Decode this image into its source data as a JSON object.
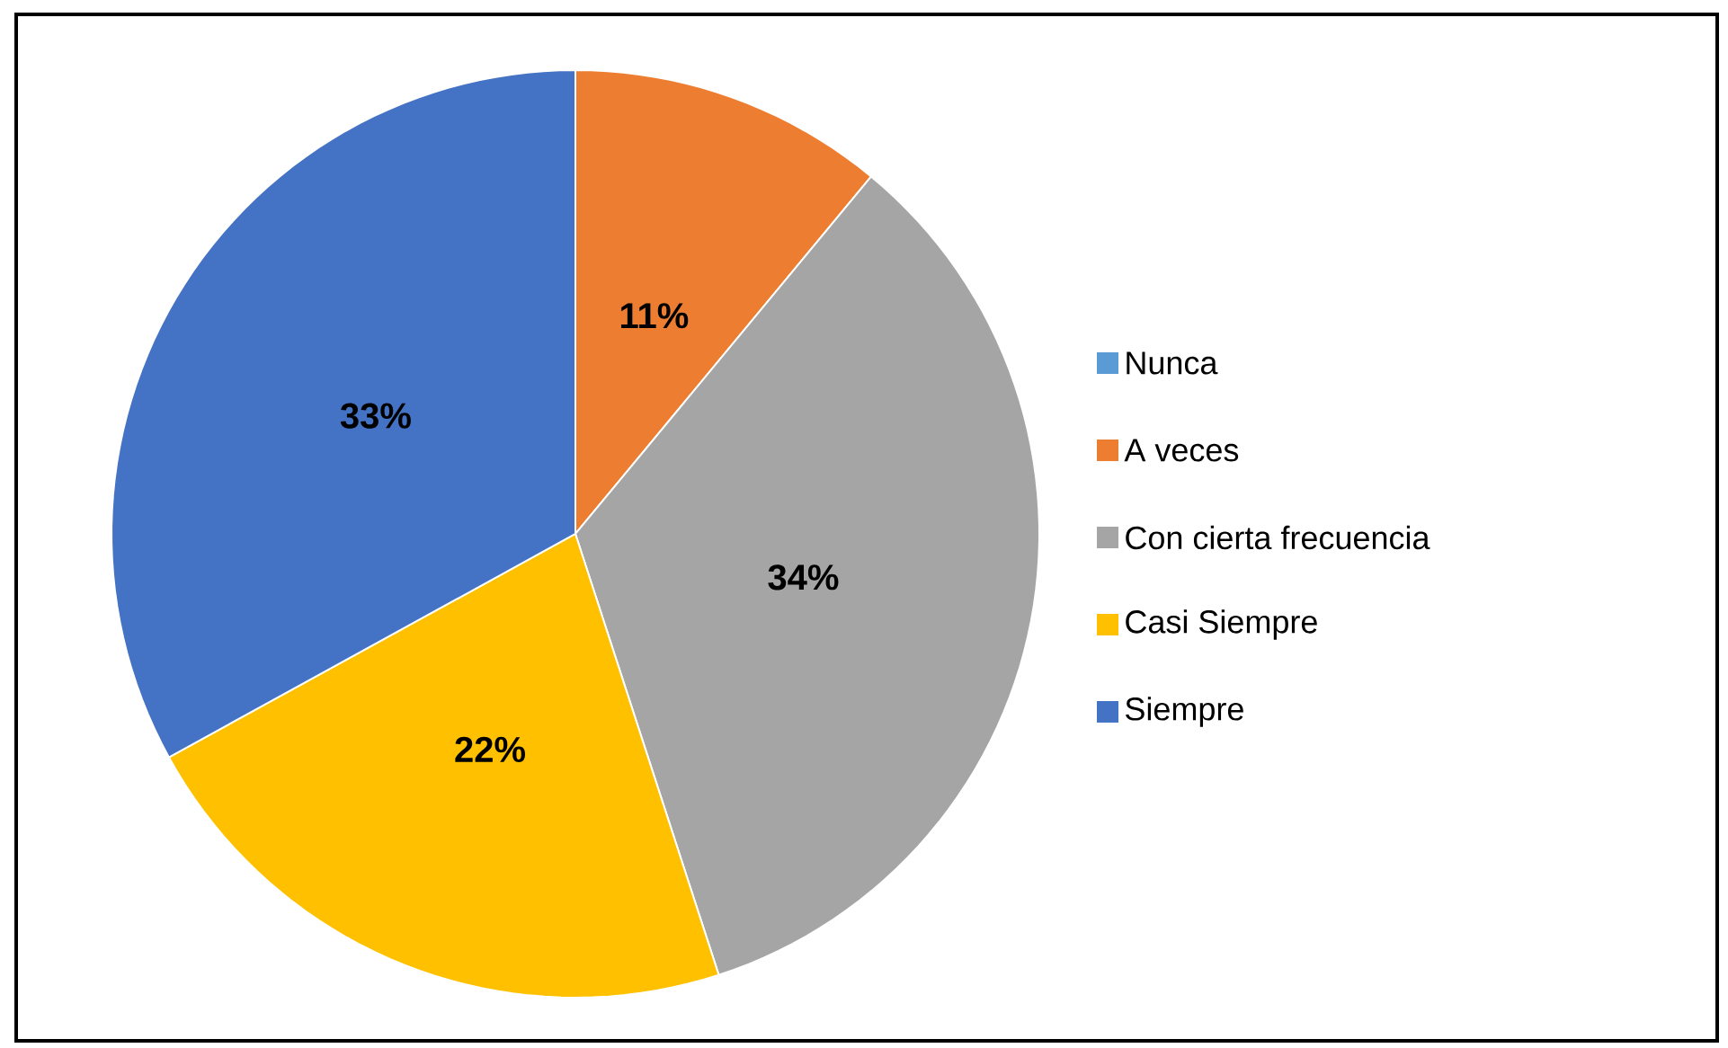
{
  "chart_data": {
    "type": "pie",
    "categories": [
      "Nunca",
      "A veces",
      "Con cierta frecuencia",
      "Casi Siempre",
      "Siempre"
    ],
    "values": [
      0,
      11,
      34,
      22,
      33
    ],
    "value_labels": [
      null,
      "11%",
      "34%",
      "22%",
      "33%"
    ],
    "colors": [
      "#5b9bd5",
      "#ed7d31",
      "#a5a5a5",
      "#ffc000",
      "#4472c4"
    ],
    "legend": "right"
  }
}
